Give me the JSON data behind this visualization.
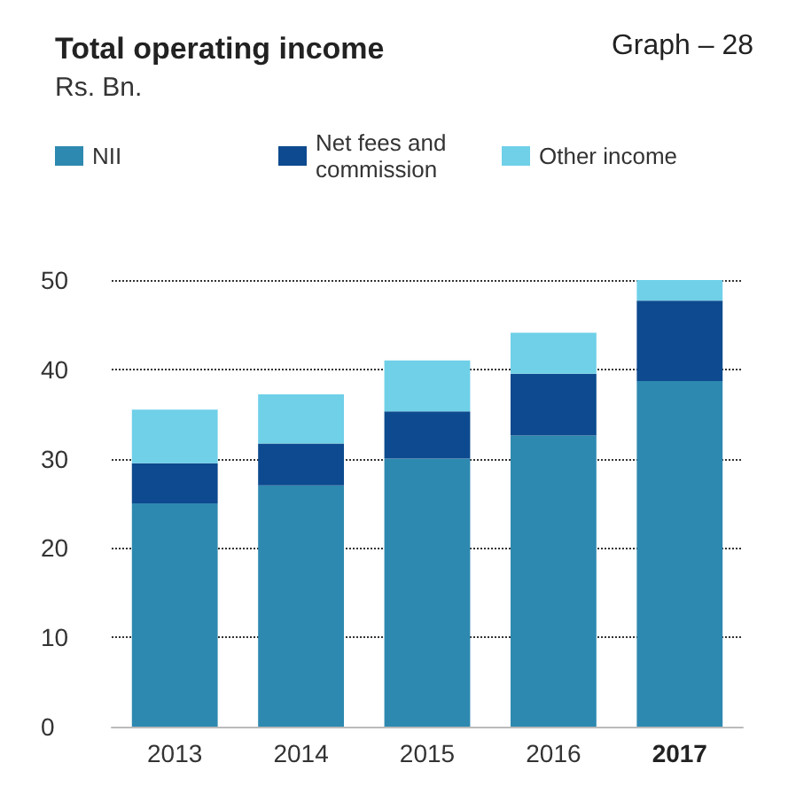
{
  "chart_data": {
    "type": "bar",
    "title": "Total operating income",
    "subtitle": "Rs. Bn.",
    "annotations": [
      "Graph – 28"
    ],
    "categories": [
      "2013",
      "2014",
      "2015",
      "2016",
      "2017"
    ],
    "series": [
      {
        "name": "NII",
        "color": "#2e89b0",
        "values": [
          25,
          27,
          30,
          32.6,
          38.7
        ]
      },
      {
        "name": "Net fees and commission",
        "color": "#0d4a8f",
        "values": [
          4.5,
          4.7,
          5.3,
          6.9,
          9
        ]
      },
      {
        "name": "Other income",
        "color": "#6fd0e8",
        "values": [
          6,
          5.5,
          5.7,
          4.6,
          2.3
        ]
      }
    ],
    "stacked": true,
    "ylim": [
      0,
      50
    ],
    "yticks": [
      0,
      10,
      20,
      30,
      40,
      50
    ],
    "grid": "y",
    "legend": "top left"
  }
}
